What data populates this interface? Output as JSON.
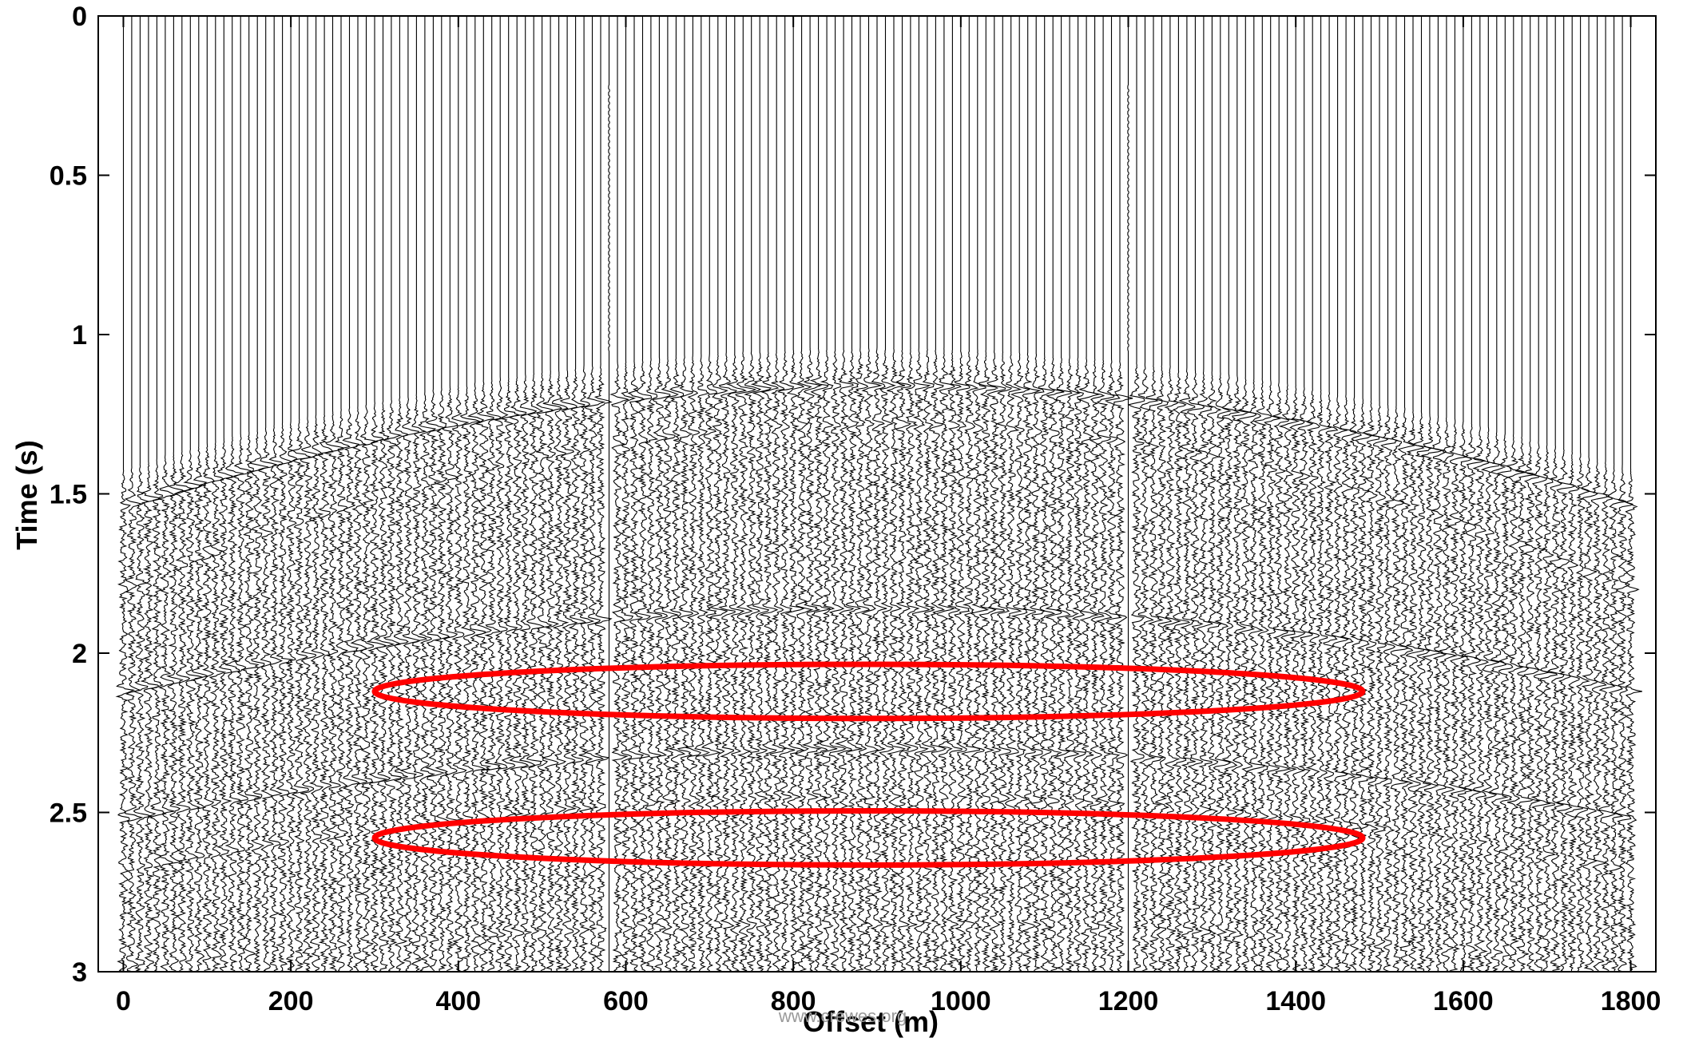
{
  "chart_data": {
    "type": "seismic-wiggle-gather",
    "title": "",
    "xlabel": "Offset (m)",
    "ylabel": "Time (s)",
    "xlim": [
      -30,
      1830
    ],
    "ylim_time_s": [
      0,
      3
    ],
    "x_ticks": [
      0,
      200,
      400,
      600,
      800,
      1000,
      1200,
      1400,
      1600,
      1800
    ],
    "x_tick_labels": [
      "0",
      "200",
      "400",
      "600",
      "800",
      "1000",
      "1200",
      "1400",
      "1600",
      "1800"
    ],
    "y_ticks": [
      0,
      0.5,
      1,
      1.5,
      2,
      2.5,
      3
    ],
    "y_tick_labels": [
      "0",
      "0.5",
      "1",
      "1.5",
      "2",
      "2.5",
      "3"
    ],
    "grid": false,
    "trace_offset_start_m": 0,
    "trace_offset_end_m": 1800,
    "trace_spacing_m": 10,
    "dead_traces_offset_m": [
      580,
      1200
    ],
    "reflection_events": [
      {
        "t0_s": 1.16,
        "t_edge_s": 1.54,
        "strength": 1.0
      },
      {
        "t0_s": 1.28,
        "t_edge_s": 1.8,
        "strength": 0.45
      },
      {
        "t0_s": 1.86,
        "t_edge_s": 2.12,
        "strength": 0.9
      },
      {
        "t0_s": 2.3,
        "t_edge_s": 2.52,
        "strength": 0.85
      },
      {
        "t0_s": 2.45,
        "t_edge_s": 2.68,
        "strength": 0.45
      },
      {
        "t0_s": 2.85,
        "t_edge_s": 2.98,
        "strength": 0.35
      }
    ],
    "annotations": [
      {
        "type": "ellipse",
        "color": "#ff0000",
        "center_offset_m": 890,
        "center_time_s": 2.12,
        "half_width_m": 590,
        "half_height_s": 0.085
      },
      {
        "type": "ellipse",
        "color": "#ff0000",
        "center_offset_m": 890,
        "center_time_s": 2.58,
        "half_width_m": 590,
        "half_height_s": 0.085
      }
    ],
    "colors": {
      "traces": "#000000",
      "highlight": "#ff0000",
      "frame": "#000000"
    },
    "watermark": "www.crewes.org"
  }
}
